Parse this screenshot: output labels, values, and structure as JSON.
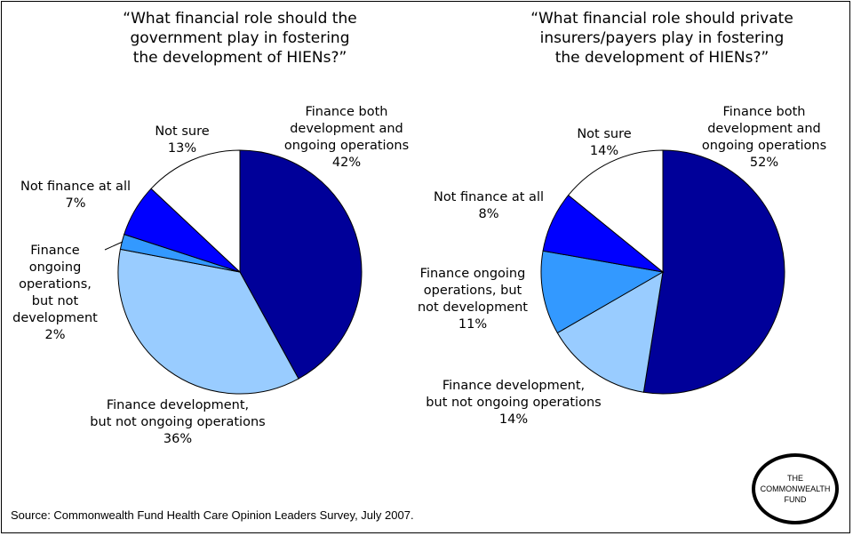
{
  "charts": [
    {
      "title": "“What financial role should the\ngovernment play in fostering\nthe development of HIENs?”",
      "labels": [
        {
          "lines": [
            "Finance both",
            "development and",
            "ongoing operations"
          ],
          "pct": "42%"
        },
        {
          "lines": [
            "Finance development,",
            "but not ongoing operations"
          ],
          "pct": "36%"
        },
        {
          "lines": [
            "Finance",
            "ongoing",
            "operations,",
            "but not",
            "development"
          ],
          "pct": "2%"
        },
        {
          "lines": [
            "Not finance at all"
          ],
          "pct": "7%"
        },
        {
          "lines": [
            "Not sure"
          ],
          "pct": "13%"
        }
      ]
    },
    {
      "title": "“What financial role should private\ninsurers/payers play in fostering\nthe development of HIENs?”",
      "labels": [
        {
          "lines": [
            "Finance both",
            "development and",
            "ongoing operations"
          ],
          "pct": "52%"
        },
        {
          "lines": [
            "Finance development,",
            "but not ongoing operations"
          ],
          "pct": "14%"
        },
        {
          "lines": [
            "Finance ongoing",
            "operations, but",
            "not development"
          ],
          "pct": "11%"
        },
        {
          "lines": [
            "Not finance at all"
          ],
          "pct": "8%"
        },
        {
          "lines": [
            "Not sure"
          ],
          "pct": "14%"
        }
      ]
    }
  ],
  "chart_data": [
    {
      "type": "pie",
      "title": "“What financial role should the government play in fostering the development of HIENs?”",
      "slices": [
        {
          "label": "Finance both development and ongoing operations",
          "value": 42,
          "color": "#000099"
        },
        {
          "label": "Finance development, but not ongoing operations",
          "value": 36,
          "color": "#99ccff"
        },
        {
          "label": "Finance ongoing operations, but not development",
          "value": 2,
          "color": "#3399ff"
        },
        {
          "label": "Not finance at all",
          "value": 7,
          "color": "#0000ff"
        },
        {
          "label": "Not sure",
          "value": 13,
          "color": "#ffffff"
        }
      ]
    },
    {
      "type": "pie",
      "title": "“What financial role should private insurers/payers play in fostering the development of HIENs?”",
      "slices": [
        {
          "label": "Finance both development and ongoing operations",
          "value": 52,
          "color": "#000099"
        },
        {
          "label": "Finance development, but not ongoing operations",
          "value": 14,
          "color": "#99ccff"
        },
        {
          "label": "Finance ongoing operations, but not development",
          "value": 11,
          "color": "#3399ff"
        },
        {
          "label": "Not finance at all",
          "value": 8,
          "color": "#0000ff"
        },
        {
          "label": "Not sure",
          "value": 14,
          "color": "#ffffff"
        }
      ]
    }
  ],
  "source": "Source: Commonwealth Fund Health Care Opinion Leaders Survey, July 2007.",
  "logo": {
    "line1": "THE",
    "line2": "COMMONWEALTH",
    "line3": "FUND"
  }
}
